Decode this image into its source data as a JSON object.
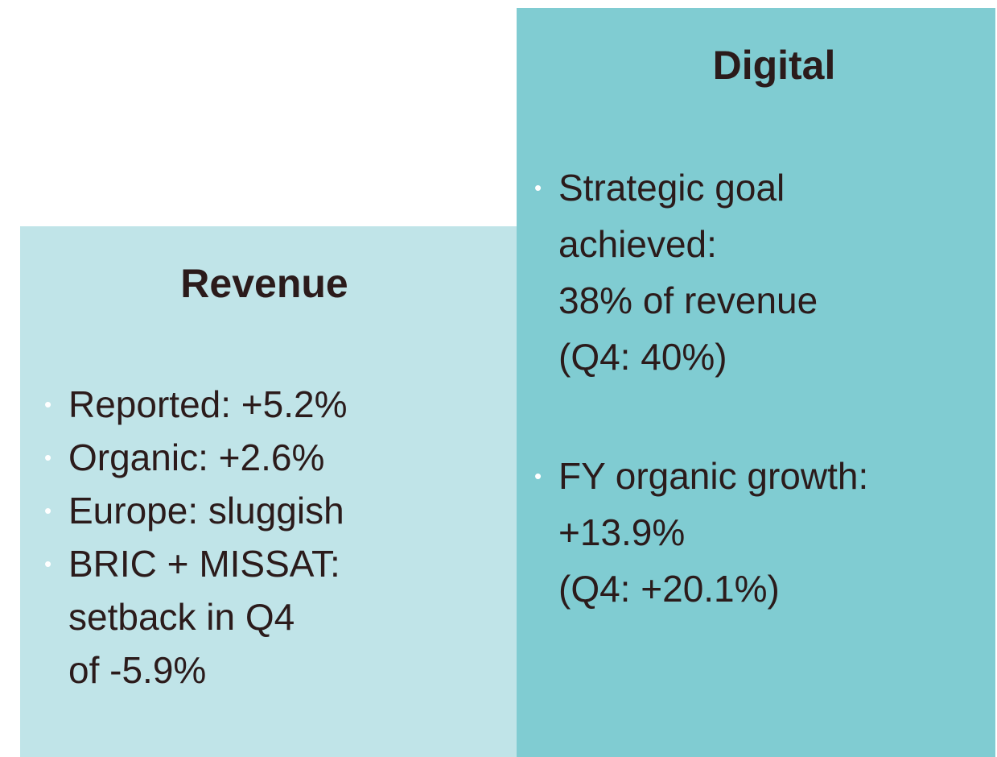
{
  "revenue": {
    "title": "Revenue",
    "bullets": [
      [
        "Reported: +5.2%"
      ],
      [
        "Organic: +2.6%"
      ],
      [
        "Europe: sluggish"
      ],
      [
        "BRIC + MISSAT:",
        "setback in Q4",
        "of -5.9%"
      ]
    ]
  },
  "digital": {
    "title": "Digital",
    "bullets": [
      [
        "Strategic goal",
        "achieved:",
        "38% of revenue",
        "(Q4: 40%)"
      ],
      [
        "FY organic growth:",
        "+13.9%",
        "(Q4: +20.1%)"
      ]
    ]
  }
}
